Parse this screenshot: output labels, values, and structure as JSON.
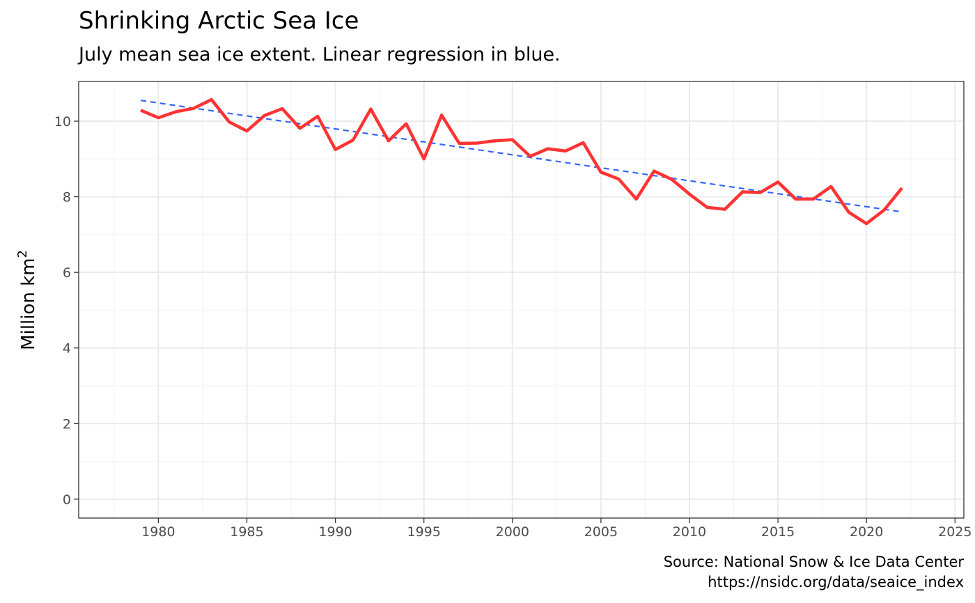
{
  "title": "Shrinking Arctic Sea Ice",
  "subtitle": "July mean sea ice extent. Linear regression in blue.",
  "caption": {
    "line1": "Source: National Snow & Ice Data Center",
    "line2": "https://nsidc.org/data/seaice_index"
  },
  "chart_data": {
    "type": "line",
    "title": "Shrinking Arctic Sea Ice",
    "subtitle": "July mean sea ice extent. Linear regression in blue.",
    "xlabel": "",
    "ylabel": "Million km",
    "ylabel_superscript": "2",
    "xlim": [
      1975.5,
      2025.5
    ],
    "ylim": [
      -0.5,
      11.05
    ],
    "x_ticks": [
      1980,
      1985,
      1990,
      1995,
      2000,
      2005,
      2010,
      2015,
      2020,
      2025
    ],
    "y_ticks": [
      0,
      2,
      4,
      6,
      8,
      10
    ],
    "grid": true,
    "legend": "none",
    "series": [
      {
        "color": "#ff3333",
        "x": [
          1979,
          1980,
          1981,
          1982,
          1983,
          1984,
          1985,
          1986,
          1987,
          1988,
          1989,
          1990,
          1991,
          1992,
          1993,
          1994,
          1995,
          1996,
          1997,
          1998,
          1999,
          2000,
          2001,
          2002,
          2003,
          2004,
          2005,
          2006,
          2007,
          2008,
          2009,
          2010,
          2011,
          2012,
          2013,
          2014,
          2015,
          2016,
          2017,
          2018,
          2019,
          2020,
          2021,
          2022
        ],
        "values": [
          10.29,
          10.09,
          10.25,
          10.34,
          10.57,
          9.98,
          9.74,
          10.15,
          10.33,
          9.81,
          10.13,
          9.25,
          9.5,
          10.32,
          9.48,
          9.93,
          9.0,
          10.16,
          9.41,
          9.42,
          9.48,
          9.51,
          9.07,
          9.27,
          9.21,
          9.43,
          8.65,
          8.47,
          7.94,
          8.68,
          8.46,
          8.07,
          7.72,
          7.67,
          8.13,
          8.11,
          8.39,
          7.94,
          7.94,
          8.27,
          7.59,
          7.29,
          7.65,
          8.23
        ]
      },
      {
        "color": "#3366ff",
        "dashed": true,
        "x": [
          1979,
          2022
        ],
        "values": [
          10.55,
          7.6
        ]
      }
    ]
  }
}
